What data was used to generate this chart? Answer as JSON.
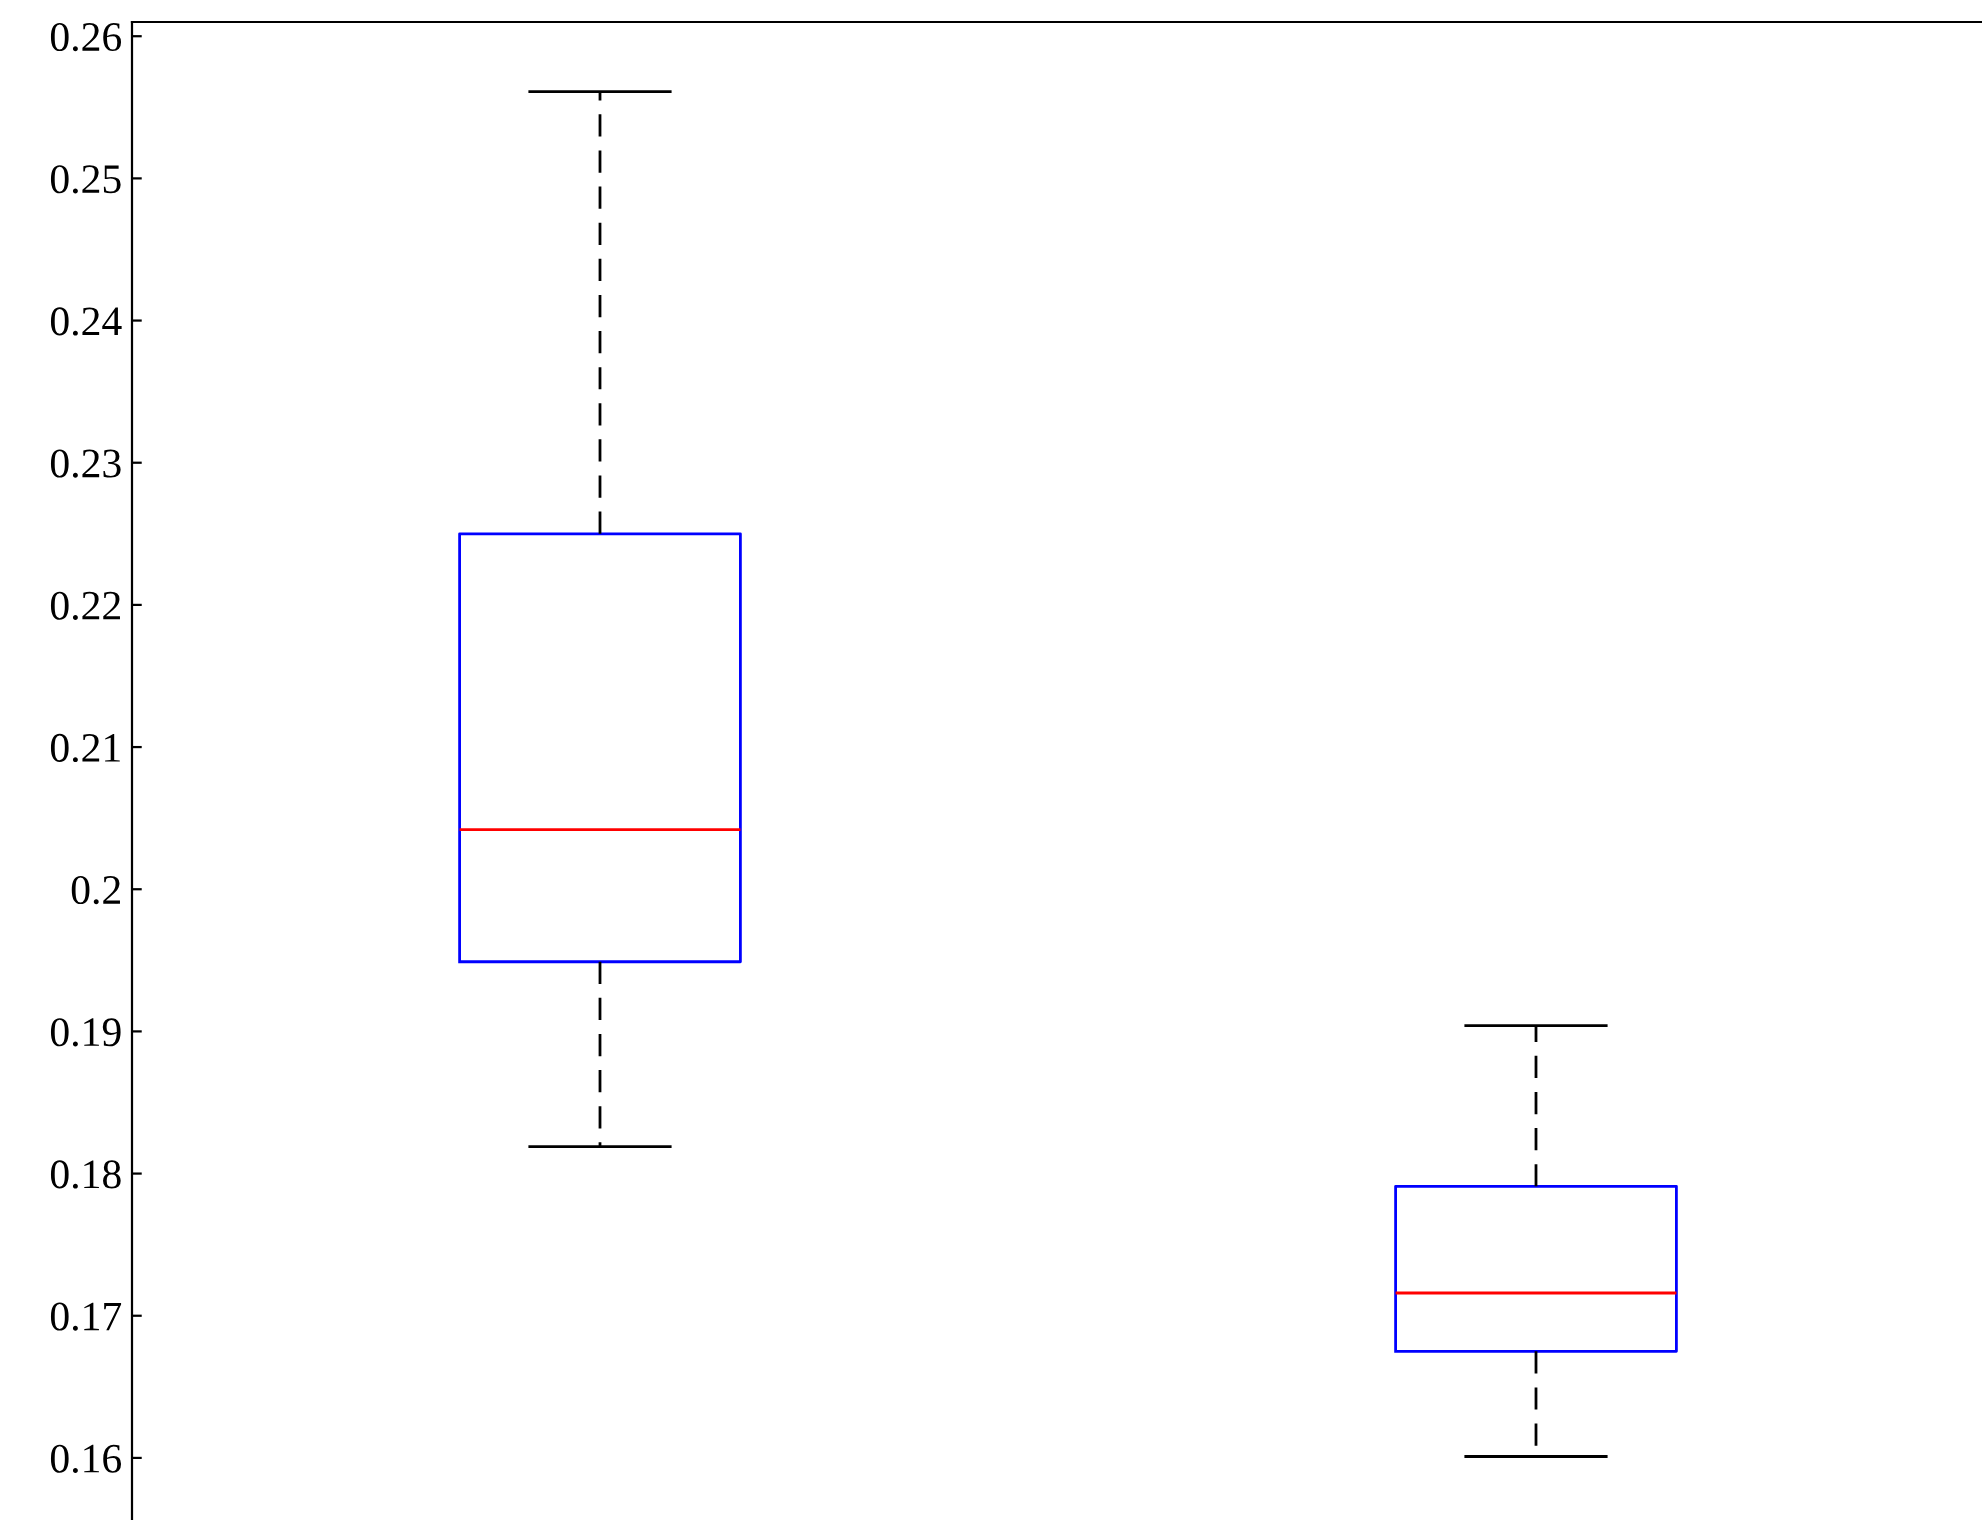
{
  "chart_data": {
    "type": "box",
    "categories": [
      null,
      null
    ],
    "boxes": [
      {
        "low": 0.1819,
        "q1": 0.1949,
        "median": 0.2042,
        "q3": 0.225,
        "high": 0.2561
      },
      {
        "low": 0.1601,
        "q1": 0.1675,
        "median": 0.1716,
        "q3": 0.1791,
        "high": 0.1904
      }
    ],
    "color": "#0000ff",
    "ylim": [
      0.155,
      0.261
    ],
    "yticks": [
      0.16,
      0.17,
      0.18,
      0.19,
      0.2,
      0.21,
      0.22,
      0.23,
      0.24,
      0.25,
      0.26
    ],
    "tick_labels": "y",
    "grid": false,
    "legend": false
  }
}
